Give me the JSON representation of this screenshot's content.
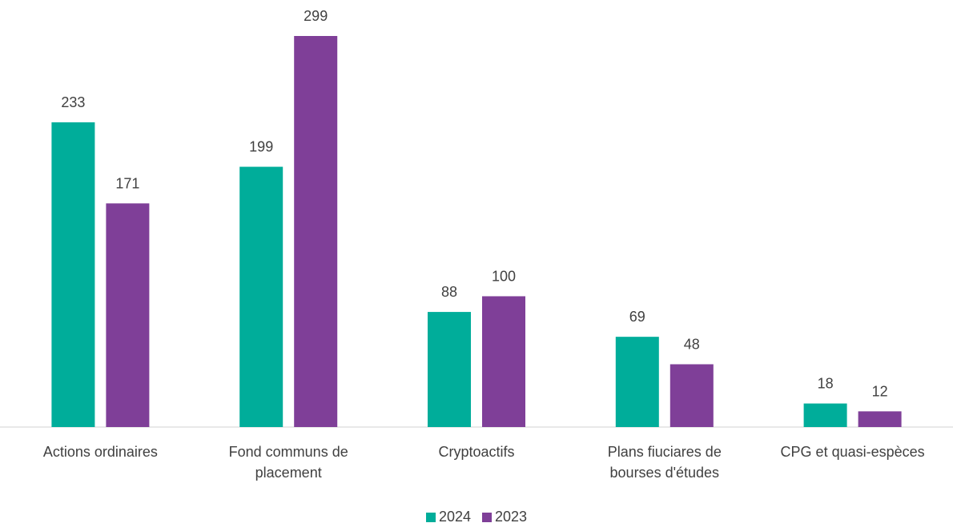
{
  "chart_data": {
    "type": "bar",
    "categories": [
      "Actions ordinaires",
      "Fond communs de placement",
      "Cryptoactifs",
      "Plans fiuciares de bourses d'études",
      "CPG et quasi-espèces"
    ],
    "series": [
      {
        "name": "2024",
        "color": "#00ad9a",
        "values": [
          233,
          199,
          88,
          69,
          18
        ]
      },
      {
        "name": "2023",
        "color": "#7f3f98",
        "values": [
          171,
          299,
          100,
          48,
          12
        ]
      }
    ]
  }
}
